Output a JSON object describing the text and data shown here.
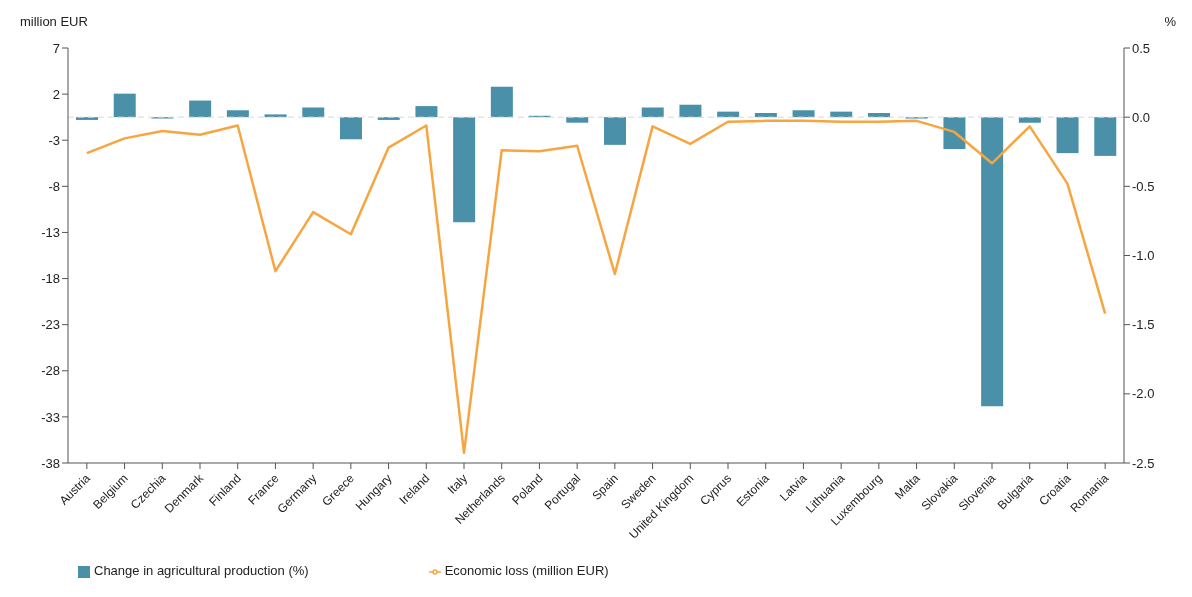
{
  "chart_data": {
    "type": "bar",
    "ylabel": "million EUR",
    "y2label": "%",
    "categories": [
      "Austria",
      "Belgium",
      "Czechia",
      "Denmark",
      "Finland",
      "France",
      "Germany",
      "Greece",
      "Hungary",
      "Ireland",
      "Italy",
      "Netherlands",
      "Poland",
      "Portugal",
      "Spain",
      "Sweden",
      "United Kingdom",
      "Cyprus",
      "Estonia",
      "Latvia",
      "Lithuania",
      "Luxembourg",
      "Malta",
      "Slovakia",
      "Slovenia",
      "Bulgaria",
      "Croatia",
      "Romania"
    ],
    "series": [
      {
        "name": "Change in agricultural production (%)",
        "axis": "y2",
        "color": "#4a90a8",
        "values": [
          -0.02,
          0.17,
          -0.01,
          0.12,
          0.05,
          0.02,
          0.07,
          -0.16,
          -0.02,
          0.08,
          -0.76,
          0.22,
          0.01,
          -0.04,
          -0.2,
          0.07,
          0.09,
          0.04,
          0.03,
          0.05,
          0.04,
          0.03,
          -0.01,
          -0.23,
          -2.09,
          -0.04,
          -0.26,
          -0.28
        ]
      },
      {
        "name": "Economic loss (million EUR)",
        "type": "line",
        "axis": "y",
        "color": "#f7a540",
        "values": [
          -4.4,
          -2.8,
          -2.0,
          -2.4,
          -1.4,
          -17.2,
          -10.8,
          -13.2,
          -3.8,
          -1.4,
          -36.9,
          -4.1,
          -4.2,
          -3.6,
          -17.5,
          -1.5,
          -3.4,
          -1.0,
          -0.9,
          -0.9,
          -1.0,
          -1.0,
          -0.9,
          -2.1,
          -5.5,
          -1.5,
          -7.7,
          -21.8
        ]
      }
    ],
    "ylim": [
      -38,
      7
    ],
    "yticks": [
      7,
      2,
      -3,
      -8,
      -13,
      -18,
      -23,
      -28,
      -33,
      -38
    ],
    "y2lim": [
      -2.5,
      0.5
    ],
    "y2ticks": [
      {
        "value": 0.5,
        "label": "0.5"
      },
      {
        "value": 0,
        "label": "0.0"
      },
      {
        "value": -0.5,
        "label": "-0.5"
      },
      {
        "value": -1,
        "label": "-1.0"
      },
      {
        "value": -1.5,
        "label": "-1.5"
      },
      {
        "value": -2,
        "label": "-2.0"
      },
      {
        "value": -2.5,
        "label": "-2.5"
      }
    ],
    "ref_lines": [
      {
        "axis": "y2",
        "value": 0,
        "color": "#d9d9d9",
        "line_style": "dashed"
      }
    ],
    "grid": false,
    "legend": "bottom",
    "marker": "none",
    "line_style": "solid"
  }
}
